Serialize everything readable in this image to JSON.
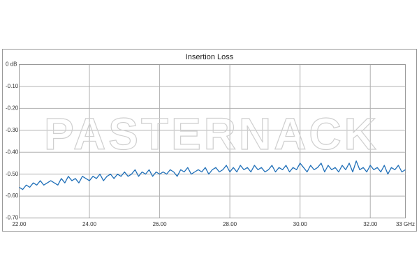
{
  "chart_data": {
    "type": "line",
    "title": "Insertion Loss",
    "watermark": "PASTERNACK",
    "x": [
      22.0,
      22.1,
      22.2,
      22.3,
      22.4,
      22.5,
      22.6,
      22.7,
      22.8,
      22.9,
      23.0,
      23.1,
      23.2,
      23.3,
      23.4,
      23.5,
      23.6,
      23.7,
      23.8,
      23.9,
      24.0,
      24.1,
      24.2,
      24.3,
      24.4,
      24.5,
      24.6,
      24.7,
      24.8,
      24.9,
      25.0,
      25.1,
      25.2,
      25.3,
      25.4,
      25.5,
      25.6,
      25.7,
      25.8,
      25.9,
      26.0,
      26.1,
      26.2,
      26.3,
      26.4,
      26.5,
      26.6,
      26.7,
      26.8,
      26.9,
      27.0,
      27.1,
      27.2,
      27.3,
      27.4,
      27.5,
      27.6,
      27.7,
      27.8,
      27.9,
      28.0,
      28.1,
      28.2,
      28.3,
      28.4,
      28.5,
      28.6,
      28.7,
      28.8,
      28.9,
      29.0,
      29.1,
      29.2,
      29.3,
      29.4,
      29.5,
      29.6,
      29.7,
      29.8,
      29.9,
      30.0,
      30.1,
      30.2,
      30.3,
      30.4,
      30.5,
      30.6,
      30.7,
      30.8,
      30.9,
      31.0,
      31.1,
      31.2,
      31.3,
      31.4,
      31.5,
      31.6,
      31.7,
      31.8,
      31.9,
      32.0,
      32.1,
      32.2,
      32.3,
      32.4,
      32.5,
      32.6,
      32.7,
      32.8,
      32.9,
      33.0
    ],
    "values": [
      -0.56,
      -0.57,
      -0.55,
      -0.56,
      -0.54,
      -0.55,
      -0.53,
      -0.55,
      -0.54,
      -0.53,
      -0.54,
      -0.55,
      -0.52,
      -0.54,
      -0.51,
      -0.53,
      -0.52,
      -0.54,
      -0.51,
      -0.52,
      -0.53,
      -0.51,
      -0.52,
      -0.5,
      -0.53,
      -0.51,
      -0.5,
      -0.52,
      -0.5,
      -0.51,
      -0.49,
      -0.51,
      -0.5,
      -0.48,
      -0.51,
      -0.49,
      -0.5,
      -0.48,
      -0.51,
      -0.49,
      -0.5,
      -0.49,
      -0.5,
      -0.48,
      -0.49,
      -0.51,
      -0.48,
      -0.49,
      -0.47,
      -0.5,
      -0.49,
      -0.48,
      -0.49,
      -0.47,
      -0.5,
      -0.48,
      -0.47,
      -0.49,
      -0.48,
      -0.46,
      -0.49,
      -0.47,
      -0.49,
      -0.46,
      -0.48,
      -0.47,
      -0.49,
      -0.46,
      -0.48,
      -0.47,
      -0.49,
      -0.48,
      -0.46,
      -0.49,
      -0.47,
      -0.48,
      -0.46,
      -0.49,
      -0.47,
      -0.48,
      -0.45,
      -0.47,
      -0.49,
      -0.46,
      -0.48,
      -0.47,
      -0.45,
      -0.49,
      -0.46,
      -0.48,
      -0.47,
      -0.49,
      -0.46,
      -0.48,
      -0.45,
      -0.49,
      -0.44,
      -0.48,
      -0.47,
      -0.49,
      -0.46,
      -0.48,
      -0.47,
      -0.49,
      -0.46,
      -0.5,
      -0.47,
      -0.48,
      -0.46,
      -0.49,
      -0.48
    ],
    "color": "#1f6fb8",
    "xlim": [
      22,
      33
    ],
    "xticks": [
      {
        "value": 22,
        "label": "22.00"
      },
      {
        "value": 24,
        "label": "24.00"
      },
      {
        "value": 26,
        "label": "26.00"
      },
      {
        "value": 28,
        "label": "28.00"
      },
      {
        "value": 30,
        "label": "30.00"
      },
      {
        "value": 32,
        "label": "32.00"
      },
      {
        "value": 33,
        "label": "33 GHz"
      }
    ],
    "ylim": [
      -0.7,
      0
    ],
    "yticks": [
      {
        "value": 0,
        "label": "0 dB"
      },
      {
        "value": -0.1,
        "label": "-0.10"
      },
      {
        "value": -0.2,
        "label": "-0.20"
      },
      {
        "value": -0.3,
        "label": "-0.30"
      },
      {
        "value": -0.4,
        "label": "-0.40"
      },
      {
        "value": -0.5,
        "label": "-0.50"
      },
      {
        "value": -0.6,
        "label": "-0.60"
      },
      {
        "value": -0.7,
        "label": "-0.70"
      }
    ],
    "grid": true
  }
}
